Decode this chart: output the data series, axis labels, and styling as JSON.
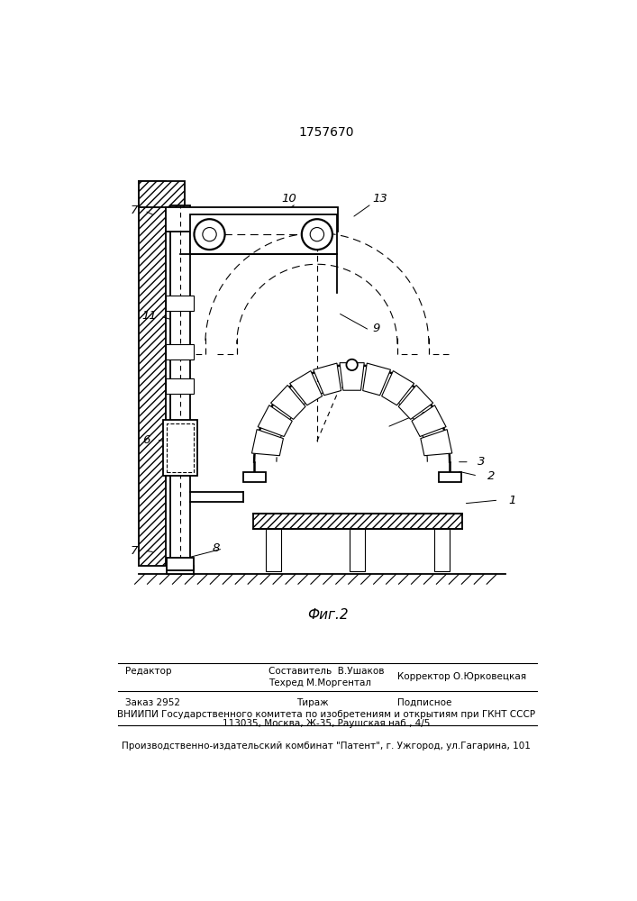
{
  "title": "1757670",
  "fig_label": "Фиг.2",
  "bg_color": "#ffffff",
  "line_color": "#000000",
  "footer": {
    "editor_label": "Редактор",
    "composer_label": "Составитель  В.Ушаков",
    "techred_label": "Техред М.Моргентал",
    "corrector_label": "Корректор О.Юрковецкая",
    "order_label": "Заказ 2952",
    "tirazh_label": "Тираж",
    "podpisnoe_label": "Подписное",
    "vniiipi_line": "ВНИИПИ Государственного комитета по изобретениям и открытиям при ГКНТ СССР",
    "address_line": "113035, Москва, Ж-35, Раушская наб., 4/5",
    "publisher_line": "Производственно-издательский комбинат \"Патент\", г. Ужгород, ул.Гагарина, 101"
  }
}
